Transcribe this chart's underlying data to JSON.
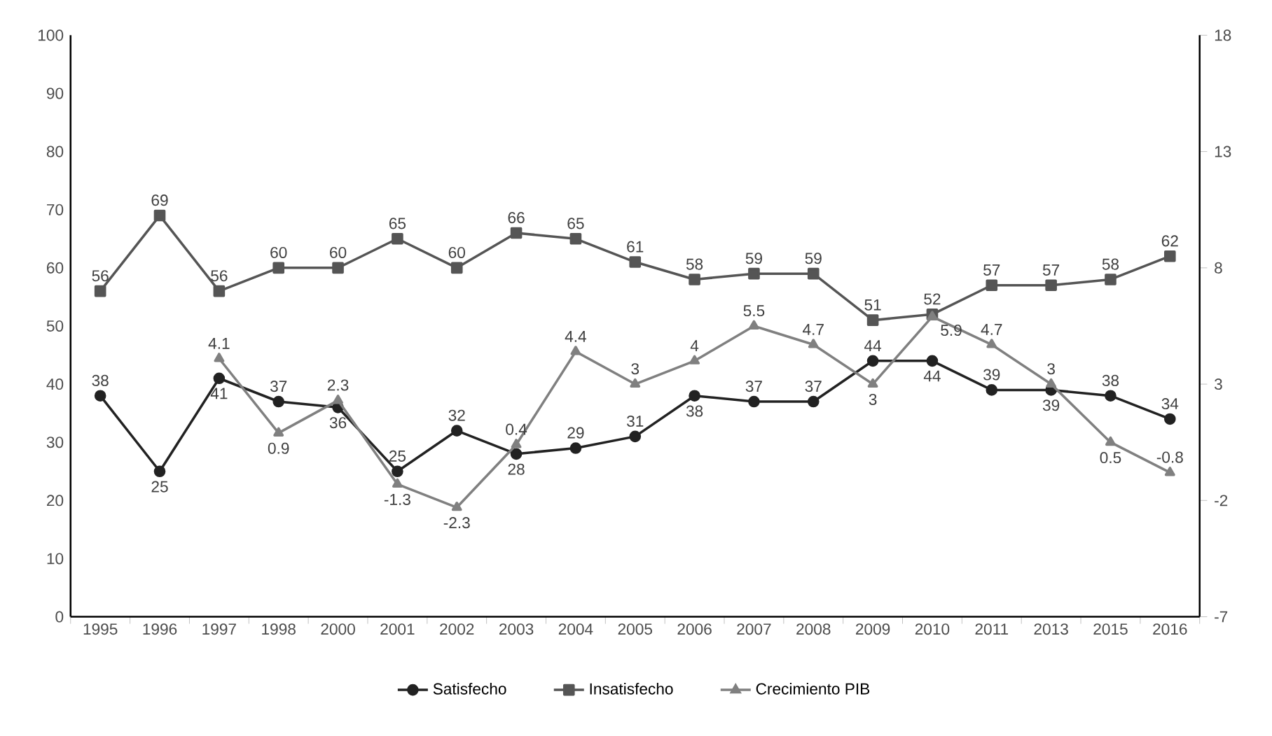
{
  "chart_data": {
    "type": "line",
    "categories": [
      "1995",
      "1996",
      "1997",
      "1998",
      "2000",
      "2001",
      "2002",
      "2003",
      "2004",
      "2005",
      "2006",
      "2007",
      "2008",
      "2009",
      "2010",
      "2011",
      "2013",
      "2015",
      "2016"
    ],
    "series": [
      {
        "name": "Satisfecho",
        "color": "#222222",
        "marker": "circle",
        "values": [
          38,
          25,
          41,
          37,
          36,
          25,
          32,
          28,
          29,
          31,
          38,
          37,
          37,
          44,
          44,
          39,
          39,
          38,
          34
        ]
      },
      {
        "name": "Insatisfecho",
        "color": "#555555",
        "marker": "square",
        "values": [
          56,
          69,
          56,
          60,
          60,
          65,
          60,
          66,
          65,
          61,
          58,
          59,
          59,
          51,
          52,
          57,
          57,
          58,
          62
        ]
      },
      {
        "name": "Crecimiento PIB",
        "color": "#808080",
        "marker": "triangle",
        "axis": "y2",
        "values": [
          null,
          null,
          4.1,
          0.9,
          2.3,
          -1.3,
          -2.3,
          0.4,
          4.4,
          3,
          4,
          5.5,
          4.7,
          3,
          5.9,
          4.7,
          3,
          0.5,
          -0.8
        ]
      }
    ],
    "ylim": [
      0,
      100
    ],
    "yticks": [
      0,
      10,
      20,
      30,
      40,
      50,
      60,
      70,
      80,
      90,
      100
    ],
    "y2lim": [
      -7,
      18
    ],
    "y2ticks": [
      -7,
      -2,
      3,
      8,
      13,
      18
    ],
    "data_labels": true,
    "grid": false,
    "legend": "bottom",
    "line_style": "solid"
  }
}
